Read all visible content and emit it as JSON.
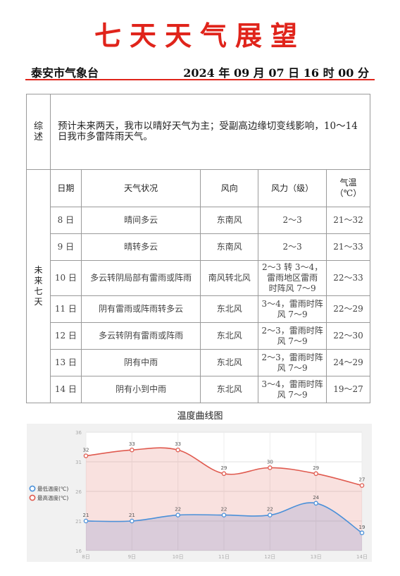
{
  "header": {
    "title": "七天天气展望",
    "office": "泰安市气象台",
    "issue_time": "2024 年 09 月 07 日 16 时 00 分"
  },
  "summary": {
    "label_lines": [
      "综",
      "述"
    ],
    "text": "预计未来两天，我市以晴好天气为主；受副高边缘切变线影响，10～14 日我市多雷阵雨天气。"
  },
  "forecast": {
    "label_lines": [
      "未",
      "来",
      "七",
      "天"
    ],
    "columns": {
      "date": "日期",
      "condition": "天气状况",
      "wind_dir": "风向",
      "wind_force": "风力（级）",
      "temp_line1": "气温",
      "temp_line2": "（℃）"
    },
    "rows": [
      {
        "date": "8 日",
        "condition": "晴间多云",
        "wind_dir": "东南风",
        "wind_force": [
          "2～3"
        ],
        "temp": "21～32"
      },
      {
        "date": "9 日",
        "condition": "晴转多云",
        "wind_dir": "东南风",
        "wind_force": [
          "2～3"
        ],
        "temp": "21～33"
      },
      {
        "date": "10 日",
        "condition": "多云转阴局部有雷雨或阵雨",
        "wind_dir": "南风转北风",
        "wind_force": [
          "2～3 转 3～4，",
          "雷雨地区雷雨",
          "时阵风 7～9"
        ],
        "temp": "22～33"
      },
      {
        "date": "11 日",
        "condition": "阴有雷雨或阵雨转多云",
        "wind_dir": "东北风",
        "wind_force": [
          "3～4，雷雨时阵",
          "风 7～9"
        ],
        "temp": "22～29"
      },
      {
        "date": "12 日",
        "condition": "多云转阴有雷雨或阵雨",
        "wind_dir": "东北风",
        "wind_force": [
          "2～3，雷雨时阵",
          "风 7～9"
        ],
        "temp": "22～30"
      },
      {
        "date": "13 日",
        "condition": "阴有中雨",
        "wind_dir": "东北风",
        "wind_force": [
          "2～3，雷雨时阵",
          "风 7～9"
        ],
        "temp": "24～29"
      },
      {
        "date": "14 日",
        "condition": "阴有小到中雨",
        "wind_dir": "东北风",
        "wind_force": [
          "3～4，雷雨时阵",
          "风 7～9"
        ],
        "temp": "19～27"
      }
    ]
  },
  "chart_caption": "温度曲线图",
  "chart_data": {
    "type": "area",
    "categories": [
      "8日",
      "9日",
      "10日",
      "11日",
      "12日",
      "13日",
      "14日"
    ],
    "series": [
      {
        "name": "最低温度(℃)",
        "values": [
          21,
          21,
          22,
          22,
          22,
          24,
          19
        ],
        "color": "#4a90d9"
      },
      {
        "name": "最高温度(℃)",
        "values": [
          32,
          33,
          33,
          29,
          30,
          29,
          27
        ],
        "color": "#e05a4f"
      }
    ],
    "yticks": [
      16,
      21,
      26,
      31,
      36
    ],
    "ylim": [
      16,
      36
    ],
    "legend_position": "left",
    "grid": true
  }
}
